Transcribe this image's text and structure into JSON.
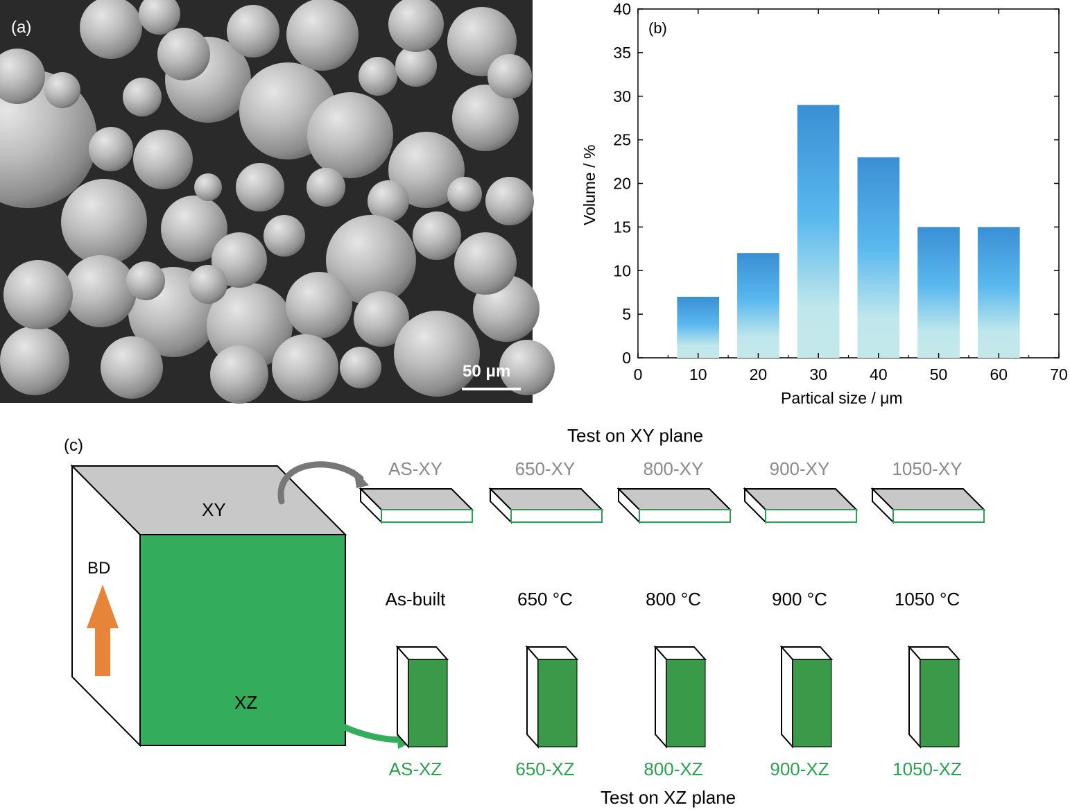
{
  "panel_a": {
    "label": "(a)",
    "scale_bar_text": "50 μm"
  },
  "panel_b": {
    "label": "(b)"
  },
  "chart_data": {
    "type": "bar",
    "categories": [
      "10",
      "20",
      "30",
      "40",
      "50",
      "60"
    ],
    "x": [
      10,
      20,
      30,
      40,
      50,
      60
    ],
    "values": [
      7,
      12,
      29,
      23,
      15,
      15
    ],
    "xlabel": "Partical size / μm",
    "ylabel": "Volume / %",
    "xlim": [
      0,
      70
    ],
    "ylim": [
      0,
      40
    ],
    "xticks": [
      0,
      10,
      20,
      30,
      40,
      50,
      60,
      70
    ],
    "yticks": [
      0,
      5,
      10,
      15,
      20,
      25,
      30,
      35,
      40
    ],
    "grid": false,
    "colors": {
      "bar_top": "#3a8fd4",
      "bar_mid": "#5ab8ee",
      "bar_bottom": "#bfe7ec"
    }
  },
  "panel_c": {
    "label": "(c)",
    "xy_face_label": "XY",
    "xz_face_label": "XZ",
    "bd_label": "BD",
    "xy_title": "Test on XY plane",
    "xz_title": "Test on XZ plane",
    "xy_samples": [
      "AS-XY",
      "650-XY",
      "800-XY",
      "900-XY",
      "1050-XY"
    ],
    "conditions": [
      "As-built",
      "650 °C",
      "800 °C",
      "900 °C",
      "1050 °C"
    ],
    "xz_samples": [
      "AS-XZ",
      "650-XZ",
      "800-XZ",
      "900-XZ",
      "1050-XZ"
    ],
    "colors": {
      "green": "#33ad5b",
      "dark_green": "#3a9a4a",
      "grey": "#c8c8c8",
      "orange": "#e8843a",
      "label_green": "#2aa050",
      "label_grey": "#8a8a8a"
    }
  }
}
